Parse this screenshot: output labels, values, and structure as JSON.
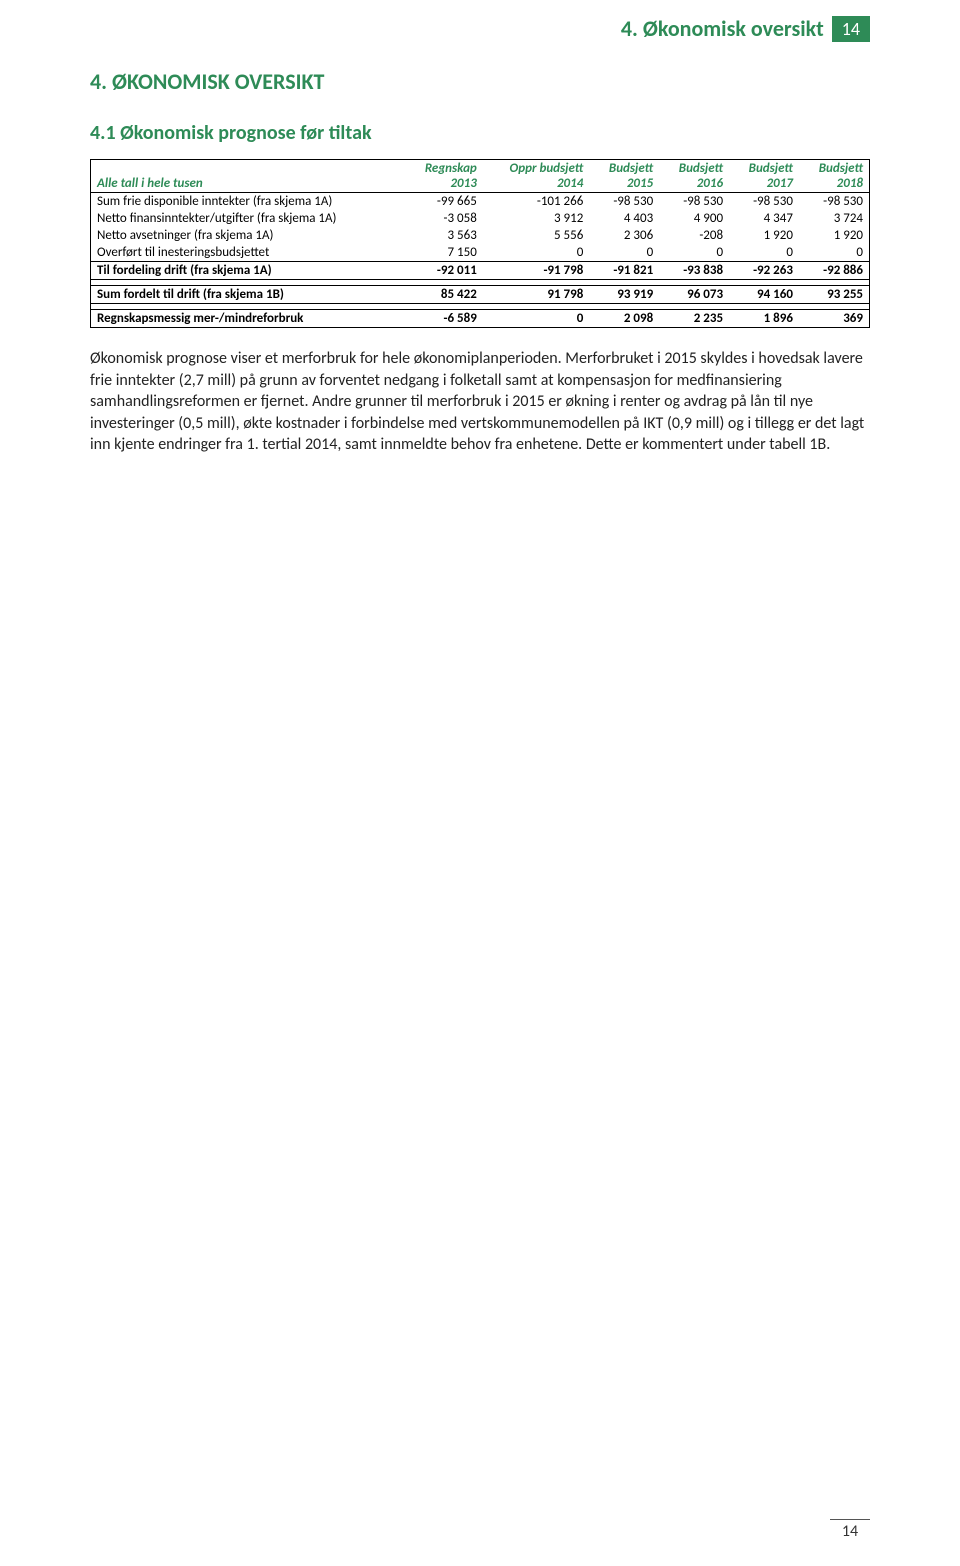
{
  "header": {
    "title": "4. Økonomisk oversikt",
    "page_badge": "14"
  },
  "section_title": "4. ØKONOMISK OVERSIKT",
  "subsection_title": "4.1 Økonomisk prognose før tiltak",
  "table": {
    "col_header_label": "Alle tall i hele tusen",
    "columns": [
      "Regnskap 2013",
      "Oppr budsjett 2014",
      "Budsjett 2015",
      "Budsjett 2016",
      "Budsjett 2017",
      "Budsjett 2018"
    ],
    "rows_group1": [
      {
        "label": "Sum frie disponible inntekter (fra skjema 1A)",
        "vals": [
          "-99 665",
          "-101 266",
          "-98 530",
          "-98 530",
          "-98 530",
          "-98 530"
        ]
      },
      {
        "label": "Netto finansinntekter/utgifter (fra skjema 1A)",
        "vals": [
          "-3 058",
          "3 912",
          "4 403",
          "4 900",
          "4 347",
          "3 724"
        ]
      },
      {
        "label": "Netto avsetninger (fra skjema 1A)",
        "vals": [
          "3 563",
          "5 556",
          "2 306",
          "-208",
          "1 920",
          "1 920"
        ]
      },
      {
        "label": "Overført til inesteringsbudsjettet",
        "vals": [
          "7 150",
          "0",
          "0",
          "0",
          "0",
          "0"
        ]
      }
    ],
    "subtotal1": {
      "label": "Til fordeling drift (fra skjema 1A)",
      "vals": [
        "-92 011",
        "-91 798",
        "-91 821",
        "-93 838",
        "-92 263",
        "-92 886"
      ]
    },
    "subtotal2": {
      "label": "Sum fordelt til drift (fra skjema 1B)",
      "vals": [
        "85 422",
        "91 798",
        "93 919",
        "96 073",
        "94 160",
        "93 255"
      ]
    },
    "total": {
      "label": "Regnskapsmessig mer-/mindreforbruk",
      "vals": [
        "-6 589",
        "0",
        "2 098",
        "2 235",
        "1 896",
        "369"
      ]
    }
  },
  "body_text": "Økonomisk prognose viser et merforbruk for hele økonomiplanperioden. Merforbruket i 2015 skyldes i hovedsak lavere frie inntekter (2,7 mill) på grunn av forventet nedgang i folketall samt at kompensasjon for medfinansiering samhandlingsreformen er fjernet. Andre grunner til merforbruk i 2015 er økning i renter og avdrag på lån til nye investeringer (0,5 mill), økte kostnader i forbindelse med vertskommunemodellen på IKT (0,9 mill) og i tillegg er det lagt inn kjente endringer fra 1. tertial 2014, samt innmeldte behov fra enhetene. Dette er kommentert under tabell 1B.",
  "footer_page": "14",
  "colors": {
    "accent": "#2e8b57",
    "text": "#000000",
    "background": "#ffffff"
  }
}
